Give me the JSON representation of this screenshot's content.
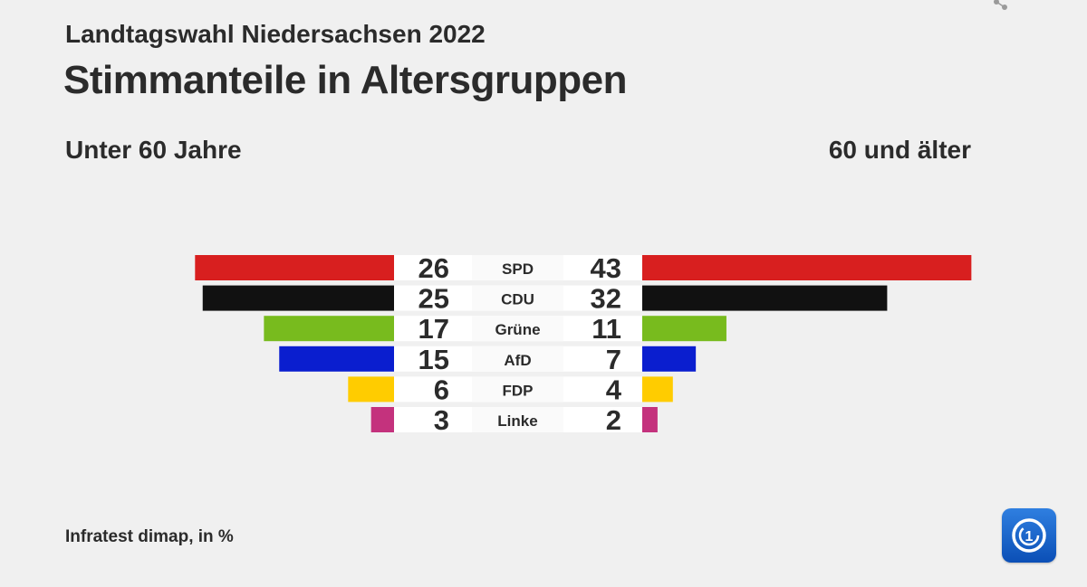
{
  "header": {
    "subtitle": "Landtagswahl Niedersachsen 2022",
    "title": "Stimmanteile in Altersgruppen"
  },
  "footer": {
    "source": "Infratest dimap, in %"
  },
  "icons": {
    "share": "share-icon",
    "logo": "tagesschau-logo-icon"
  },
  "chart_data": {
    "type": "bar",
    "orientation": "horizontal-mirrored",
    "title": "Stimmanteile in Altersgruppen",
    "subtitle": "Landtagswahl Niedersachsen 2022",
    "unit": "%",
    "categories": [
      "SPD",
      "CDU",
      "Grüne",
      "AfD",
      "FDP",
      "Linke"
    ],
    "colors": [
      "#d81f1f",
      "#111111",
      "#78bb1e",
      "#0a1ecf",
      "#ffcc00",
      "#c4327d"
    ],
    "series": [
      {
        "name": "Unter 60 Jahre",
        "side": "left",
        "values": [
          26,
          25,
          17,
          15,
          6,
          3
        ]
      },
      {
        "name": "60 und älter",
        "side": "right",
        "values": [
          43,
          32,
          11,
          7,
          4,
          2
        ]
      }
    ],
    "xlim": [
      0,
      43
    ],
    "grid": false,
    "legend": "none"
  }
}
